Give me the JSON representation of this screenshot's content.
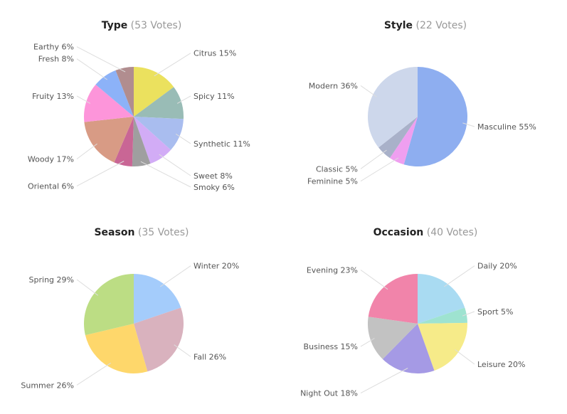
{
  "chart_data": [
    {
      "type": "pie",
      "title": "Type",
      "votes_label": "(53 Votes)",
      "slices": [
        {
          "label": "Citrus 15%",
          "value": 15,
          "color": "#ebe15e"
        },
        {
          "label": "Spicy 11%",
          "value": 11,
          "color": "#99bcb6"
        },
        {
          "label": "Synthetic 11%",
          "value": 11,
          "color": "#a9bdef"
        },
        {
          "label": "Sweet 8%",
          "value": 8,
          "color": "#d2acf6"
        },
        {
          "label": "Smoky 6%",
          "value": 6,
          "color": "#9f9f9f"
        },
        {
          "label": "Oriental 6%",
          "value": 6,
          "color": "#c96695"
        },
        {
          "label": "Woody 17%",
          "value": 17,
          "color": "#d89b85"
        },
        {
          "label": "Fruity 13%",
          "value": 13,
          "color": "#fd95da"
        },
        {
          "label": "Fresh 8%",
          "value": 8,
          "color": "#8cb2f8"
        },
        {
          "label": "Earthy 6%",
          "value": 6,
          "color": "#b18d8f"
        }
      ]
    },
    {
      "type": "pie",
      "title": "Style",
      "votes_label": "(22 Votes)",
      "slices": [
        {
          "label": "Masculine 55%",
          "value": 55,
          "color": "#8eaef0"
        },
        {
          "label": "Feminine 5%",
          "value": 5,
          "color": "#ef9ff0"
        },
        {
          "label": "Classic 5%",
          "value": 5,
          "color": "#a9b1c9"
        },
        {
          "label": "Modern 36%",
          "value": 36,
          "color": "#cdd7eb"
        }
      ]
    },
    {
      "type": "pie",
      "title": "Season",
      "votes_label": "(35 Votes)",
      "slices": [
        {
          "label": "Winter 20%",
          "value": 20,
          "color": "#a4ccfb"
        },
        {
          "label": "Fall 26%",
          "value": 26,
          "color": "#d9b2be"
        },
        {
          "label": "Summer 26%",
          "value": 26,
          "color": "#fed76b"
        },
        {
          "label": "Spring 29%",
          "value": 29,
          "color": "#bcdd84"
        }
      ]
    },
    {
      "type": "pie",
      "title": "Occasion",
      "votes_label": "(40 Votes)",
      "slices": [
        {
          "label": "Daily 20%",
          "value": 20,
          "color": "#a9dbf2"
        },
        {
          "label": "Sport 5%",
          "value": 5,
          "color": "#9ee3d0"
        },
        {
          "label": "Leisure 20%",
          "value": 20,
          "color": "#f6eb89"
        },
        {
          "label": "Night Out 18%",
          "value": 18,
          "color": "#a59ae5"
        },
        {
          "label": "Business 15%",
          "value": 15,
          "color": "#c2c2c2"
        },
        {
          "label": "Evening 23%",
          "value": 23,
          "color": "#f184aa"
        }
      ]
    }
  ]
}
